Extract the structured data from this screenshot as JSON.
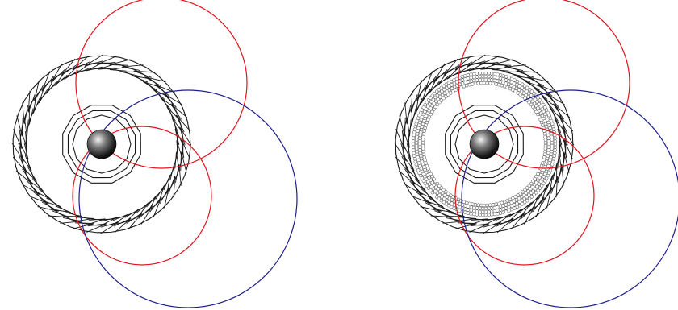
{
  "colors": {
    "background": "#ffffff",
    "detector_stroke": "#1a1a1a",
    "track_red": "#e0141e",
    "track_blue": "#1e1e8c",
    "straw_fill": "#ffffff",
    "straw_stroke": "#555555"
  },
  "panels": [
    {
      "id": "left",
      "description_name": "detector-view-without-straws",
      "has_straw_layer": false
    },
    {
      "id": "right",
      "description_name": "detector-view-with-straws",
      "has_straw_layer": true
    }
  ]
}
